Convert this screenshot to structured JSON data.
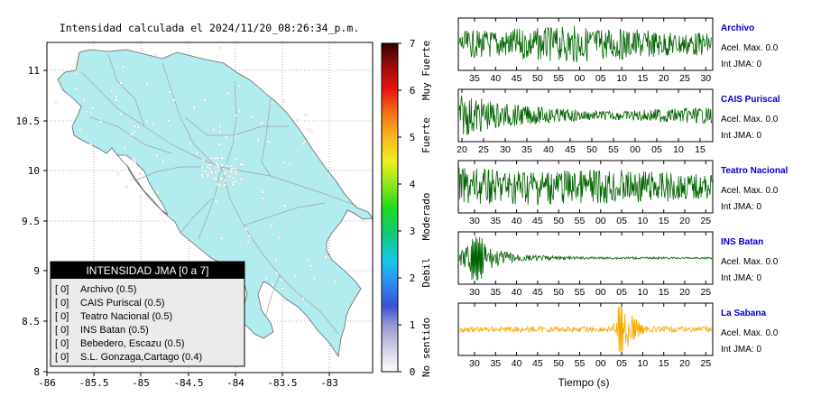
{
  "header": {
    "title": "Intensidad calculada el 2024/11/20_08:26:34_p.m."
  },
  "map": {
    "x_ticks": [
      "-86",
      "-85.5",
      "-85",
      "-84.5",
      "-84",
      "-83.5",
      "-83"
    ],
    "y_ticks": [
      "11",
      "10.5",
      "10",
      "9.5",
      "9",
      "8.5",
      "8"
    ],
    "land_color": "#b3ecee",
    "stations_color": "#ffffff"
  },
  "legend": {
    "title": "INTENSIDAD JMA [0 a 7]",
    "items": [
      {
        "value": "[ 0]",
        "label": "Archivo (0.5)"
      },
      {
        "value": "[ 0]",
        "label": "CAIS Puriscal (0.5)"
      },
      {
        "value": "[ 0]",
        "label": "Teatro Nacional (0.5)"
      },
      {
        "value": "[ 0]",
        "label": "INS Batan (0.5)"
      },
      {
        "value": "[ 0]",
        "label": "Bebedero, Escazu (0.5)"
      },
      {
        "value": "[ 0]",
        "label": "S.L. Gonzaga,Cartago (0.4)"
      }
    ]
  },
  "colorbar": {
    "ticks": [
      "0",
      "1",
      "2",
      "3",
      "4",
      "5",
      "6",
      "7"
    ],
    "categories": [
      "No sentido",
      "Debil",
      "Moderado",
      "Fuerte",
      "Muy Fuerte"
    ]
  },
  "chart_data": [
    {
      "type": "line",
      "name": "Archivo",
      "color": "#006400",
      "x_tick_labels": [
        "35",
        "40",
        "45",
        "50",
        "55",
        "00",
        "05",
        "10",
        "15",
        "20",
        "25",
        "30"
      ],
      "acel_label": "Acel. Max. 0.0",
      "int_label": "Int JMA: 0",
      "envelope": [
        0.55,
        0.6,
        0.6,
        0.65,
        0.7,
        0.7,
        0.75,
        0.8,
        0.7,
        0.7,
        0.65,
        0.6,
        0.55,
        0.5,
        0.5,
        0.5
      ]
    },
    {
      "type": "line",
      "name": "CAIS Puriscal",
      "color": "#006400",
      "x_tick_labels": [
        "20",
        "25",
        "30",
        "35",
        "40",
        "45",
        "50",
        "55",
        "00",
        "05",
        "10",
        "15"
      ],
      "acel_label": "Acel. Max. 0.0",
      "int_label": "Int JMA: 0",
      "envelope": [
        0.9,
        0.8,
        0.6,
        0.5,
        0.4,
        0.35,
        0.3,
        0.25,
        0.2,
        0.2,
        0.2,
        0.25,
        0.3,
        0.3,
        0.35,
        0.35
      ]
    },
    {
      "type": "line",
      "name": "Teatro Nacional",
      "color": "#006400",
      "x_tick_labels": [
        "30",
        "35",
        "40",
        "45",
        "50",
        "55",
        "00",
        "05",
        "10",
        "15",
        "20",
        "25"
      ],
      "acel_label": "Acel. Max. 0.0",
      "int_label": "Int JMA: 0",
      "envelope": [
        0.8,
        0.8,
        0.75,
        0.75,
        0.8,
        0.8,
        0.75,
        0.7,
        0.75,
        0.75,
        0.7,
        0.7,
        0.65,
        0.6,
        0.55,
        0.5
      ]
    },
    {
      "type": "line",
      "name": "INS Batan",
      "color": "#006400",
      "x_tick_labels": [
        "30",
        "35",
        "40",
        "45",
        "50",
        "55",
        "00",
        "05",
        "10",
        "15",
        "20",
        "25"
      ],
      "acel_label": "Acel. Max. 0.0",
      "int_label": "Int JMA: 0",
      "envelope": [
        0.3,
        0.9,
        0.4,
        0.25,
        0.15,
        0.1,
        0.08,
        0.06,
        0.05,
        0.05,
        0.05,
        0.04,
        0.04,
        0.04,
        0.04,
        0.04
      ]
    },
    {
      "type": "line",
      "name": "La Sabana",
      "color": "#f5a800",
      "x_tick_labels": [
        "30",
        "35",
        "40",
        "45",
        "50",
        "55",
        "00",
        "05",
        "10",
        "15",
        "20",
        "25"
      ],
      "acel_label": "Acel. Max. 0.0",
      "int_label": "Int JMA: 0",
      "envelope": [
        0.15,
        0.12,
        0.12,
        0.12,
        0.12,
        0.12,
        0.12,
        0.12,
        0.12,
        0.12,
        0.9,
        0.15,
        0.12,
        0.12,
        0.12,
        0.12
      ],
      "xlabel": "Tiempo (s)"
    }
  ]
}
